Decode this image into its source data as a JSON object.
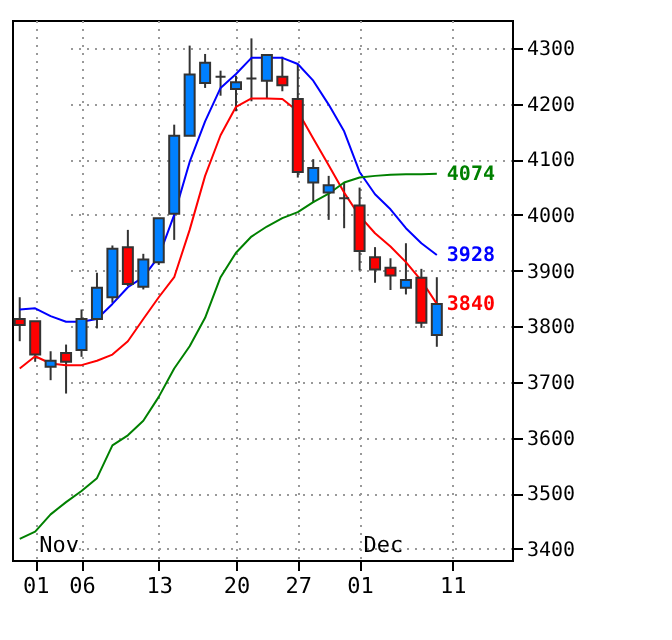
{
  "chart_data": {
    "type": "candlestick",
    "categories": [
      null,
      "01",
      null,
      null,
      "06",
      null,
      null,
      null,
      null,
      "13",
      null,
      null,
      null,
      null,
      "20",
      null,
      null,
      null,
      "27",
      null,
      null,
      null,
      "01",
      null,
      null,
      null,
      null,
      null,
      "11"
    ],
    "ohlc": [
      [
        3813,
        3852,
        3773,
        3802
      ],
      [
        3809,
        3809,
        3736,
        3749
      ],
      [
        3727,
        3755,
        3703,
        3738
      ],
      [
        3752,
        3767,
        3679,
        3736
      ],
      [
        3757,
        3830,
        3745,
        3813
      ],
      [
        3813,
        3896,
        3796,
        3869
      ],
      [
        3852,
        3945,
        3842,
        3939
      ],
      [
        3942,
        3973,
        3872,
        3876
      ],
      [
        3871,
        3930,
        3866,
        3920
      ],
      [
        3915,
        3994,
        3910,
        3994
      ],
      [
        4002,
        4162,
        3955,
        4142
      ],
      [
        4142,
        4304,
        4142,
        4252
      ],
      [
        4237,
        4289,
        4228,
        4273
      ],
      [
        4248,
        4259,
        4214,
        4248
      ],
      [
        4226,
        4250,
        4186,
        4238
      ],
      [
        4245,
        4317,
        4204,
        4245
      ],
      [
        4241,
        4287,
        4209,
        4287
      ],
      [
        4248,
        4284,
        4222,
        4233
      ],
      [
        4208,
        4271,
        4067,
        4077
      ],
      [
        4058,
        4100,
        4022,
        4084
      ],
      [
        4040,
        4070,
        3991,
        4053
      ],
      [
        4030,
        4058,
        3976,
        4030
      ],
      [
        4017,
        4049,
        3900,
        3935
      ],
      [
        3924,
        3942,
        3878,
        3902
      ],
      [
        3905,
        3922,
        3865,
        3891
      ],
      [
        3869,
        3949,
        3857,
        3883
      ],
      [
        3887,
        3903,
        3797,
        3806
      ],
      [
        3784,
        3888,
        3763,
        3840
      ],
      null
    ],
    "colors": [
      "#ff0000",
      "#ff0000",
      "#0080ff",
      "#ff0000",
      "#0080ff",
      "#0080ff",
      "#0080ff",
      "#ff0000",
      "#0080ff",
      "#0080ff",
      "#0080ff",
      "#0080ff",
      "#0080ff",
      "#333333",
      "#0080ff",
      "#333333",
      "#0080ff",
      "#ff0000",
      "#ff0000",
      "#0080ff",
      "#0080ff",
      "#333333",
      "#ff0000",
      "#ff0000",
      "#ff0000",
      "#0080ff",
      "#ff0000",
      "#0080ff",
      null
    ],
    "series": [
      {
        "type": "line",
        "color": "#0000ff",
        "values": [
          3830,
          3832,
          3818,
          3808,
          3808,
          3813,
          3840,
          3870,
          3888,
          3925,
          4000,
          4095,
          4168,
          4228,
          4253,
          4282,
          4282,
          4282,
          4271,
          4241,
          4198,
          4150,
          4077,
          4037,
          4010,
          3976,
          3949,
          3928,
          null
        ],
        "value_labels": [
          null,
          null,
          null,
          null,
          null,
          null,
          null,
          null,
          null,
          null,
          null,
          null,
          null,
          null,
          null,
          null,
          null,
          null,
          null,
          null,
          null,
          null,
          null,
          null,
          null,
          null,
          null,
          "3928",
          null
        ]
      },
      {
        "type": "line",
        "color": "#ff0000",
        "values": [
          3724,
          3746,
          3733,
          3730,
          3730,
          3738,
          3749,
          3773,
          3813,
          3852,
          3888,
          3973,
          4070,
          4143,
          4194,
          4209,
          4209,
          4208,
          4186,
          4137,
          4089,
          4040,
          3998,
          3967,
          3943,
          3915,
          3882,
          3840,
          null
        ],
        "value_labels": [
          null,
          null,
          null,
          null,
          null,
          null,
          null,
          null,
          null,
          null,
          null,
          null,
          null,
          null,
          null,
          null,
          null,
          null,
          null,
          null,
          null,
          null,
          null,
          null,
          null,
          null,
          null,
          "3840",
          null
        ]
      },
      {
        "type": "line",
        "color": "#008000",
        "values": [
          3418,
          3431,
          3462,
          3484,
          3504,
          3527,
          3586,
          3604,
          3630,
          3673,
          3724,
          3764,
          3815,
          3888,
          3932,
          3961,
          3979,
          3994,
          4005,
          4023,
          4038,
          4058,
          4067,
          4070,
          4072,
          4073,
          4073,
          4074,
          null
        ],
        "value_labels": [
          null,
          null,
          null,
          null,
          null,
          null,
          null,
          null,
          null,
          null,
          null,
          null,
          null,
          null,
          null,
          null,
          null,
          null,
          null,
          null,
          null,
          null,
          null,
          null,
          null,
          null,
          null,
          "4074",
          null
        ]
      }
    ],
    "ylim": [
      3380,
      4350
    ],
    "yticks": [
      3400,
      3500,
      3600,
      3700,
      3800,
      3900,
      4000,
      4100,
      4200,
      4300
    ],
    "annotations": [
      "Nov",
      "Dec"
    ],
    "grid": true
  }
}
